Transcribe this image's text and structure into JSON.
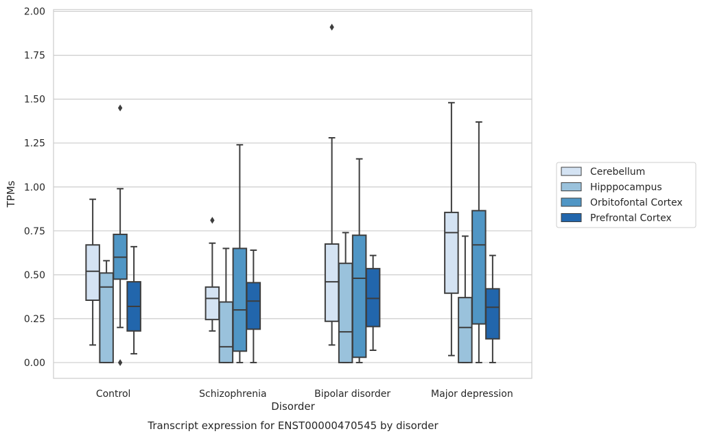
{
  "chart_data": {
    "type": "box",
    "xlabel": "Disorder",
    "ylabel": "TPMs",
    "caption": "Transcript expression for ENST00000470545 by disorder",
    "ylim": [
      -0.09,
      2.01
    ],
    "yticks": [
      "0.00",
      "0.25",
      "0.50",
      "0.75",
      "1.00",
      "1.25",
      "1.50",
      "1.75",
      "2.00"
    ],
    "grid": true,
    "legend_position": "right",
    "categories": [
      "Control",
      "Schizophrenia",
      "Bipolar disorder",
      "Major depression"
    ],
    "series": [
      {
        "name": "Cerebellum",
        "color": "#d4e3f3",
        "boxes": [
          {
            "whislo": 0.1,
            "q1": 0.355,
            "med": 0.52,
            "q3": 0.67,
            "whishi": 0.93,
            "fliers": []
          },
          {
            "whislo": 0.18,
            "q1": 0.245,
            "med": 0.365,
            "q3": 0.43,
            "whishi": 0.68,
            "fliers": [
              0.81
            ]
          },
          {
            "whislo": 0.1,
            "q1": 0.235,
            "med": 0.46,
            "q3": 0.675,
            "whishi": 1.28,
            "fliers": [
              1.91
            ]
          },
          {
            "whislo": 0.04,
            "q1": 0.395,
            "med": 0.74,
            "q3": 0.855,
            "whishi": 1.48,
            "fliers": []
          }
        ]
      },
      {
        "name": "Hipppocampus",
        "color": "#9ac2dc",
        "boxes": [
          {
            "whislo": 0.0,
            "q1": 0.0,
            "med": 0.43,
            "q3": 0.51,
            "whishi": 0.58,
            "fliers": []
          },
          {
            "whislo": 0.0,
            "q1": 0.0,
            "med": 0.09,
            "q3": 0.345,
            "whishi": 0.65,
            "fliers": []
          },
          {
            "whislo": 0.0,
            "q1": 0.0,
            "med": 0.175,
            "q3": 0.565,
            "whishi": 0.74,
            "fliers": []
          },
          {
            "whislo": 0.0,
            "q1": 0.0,
            "med": 0.2,
            "q3": 0.37,
            "whishi": 0.72,
            "fliers": []
          }
        ]
      },
      {
        "name": "Orbitofontal Cortex",
        "color": "#5096c5",
        "boxes": [
          {
            "whislo": 0.2,
            "q1": 0.475,
            "med": 0.6,
            "q3": 0.73,
            "whishi": 0.99,
            "fliers": [
              1.45,
              0.0
            ]
          },
          {
            "whislo": 0.0,
            "q1": 0.065,
            "med": 0.3,
            "q3": 0.65,
            "whishi": 1.24,
            "fliers": []
          },
          {
            "whislo": 0.0,
            "q1": 0.03,
            "med": 0.48,
            "q3": 0.725,
            "whishi": 1.16,
            "fliers": []
          },
          {
            "whislo": 0.0,
            "q1": 0.22,
            "med": 0.67,
            "q3": 0.865,
            "whishi": 1.37,
            "fliers": []
          }
        ]
      },
      {
        "name": "Prefrontal Cortex",
        "color": "#2266ac",
        "boxes": [
          {
            "whislo": 0.05,
            "q1": 0.18,
            "med": 0.32,
            "q3": 0.46,
            "whishi": 0.66,
            "fliers": []
          },
          {
            "whislo": 0.0,
            "q1": 0.19,
            "med": 0.35,
            "q3": 0.455,
            "whishi": 0.64,
            "fliers": []
          },
          {
            "whislo": 0.07,
            "q1": 0.205,
            "med": 0.365,
            "q3": 0.535,
            "whishi": 0.61,
            "fliers": []
          },
          {
            "whislo": 0.0,
            "q1": 0.135,
            "med": 0.315,
            "q3": 0.42,
            "whishi": 0.61,
            "fliers": []
          }
        ]
      }
    ]
  }
}
